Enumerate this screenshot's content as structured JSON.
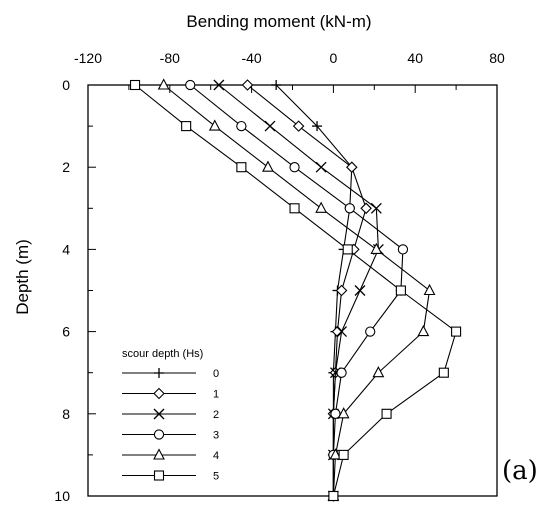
{
  "chart_data": {
    "type": "line",
    "xlabel": "Bending moment (kN-m)",
    "ylabel": "Depth (m)",
    "xlim": [
      -120,
      80
    ],
    "ylim": [
      10,
      0
    ],
    "x_axis_position": "top",
    "x_ticks": [
      -120,
      -80,
      -40,
      0,
      40,
      80
    ],
    "x_tick_labels": [
      "-120",
      "-80",
      "-40",
      "0",
      "40",
      "80"
    ],
    "y_ticks": [
      0,
      2,
      4,
      6,
      8,
      10
    ],
    "y_tick_labels": [
      "0",
      "2",
      "4",
      "6",
      "8",
      "10"
    ],
    "grid": false,
    "legend": {
      "title": "scour depth (Hs)",
      "placement": "bottom-left"
    },
    "panel_label": "(a)",
    "series": [
      {
        "name": "0",
        "marker": "plus",
        "points": [
          [
            -28,
            0
          ],
          [
            -8,
            1
          ],
          [
            9,
            2
          ],
          [
            8,
            3
          ],
          [
            5,
            4
          ],
          [
            2,
            5
          ],
          [
            1,
            6
          ],
          [
            0,
            7
          ],
          [
            0,
            8
          ],
          [
            0,
            9
          ],
          [
            0,
            10
          ]
        ]
      },
      {
        "name": "1",
        "marker": "diamond",
        "points": [
          [
            -42,
            0
          ],
          [
            -17,
            1
          ],
          [
            9,
            2
          ],
          [
            16,
            3
          ],
          [
            10,
            4
          ],
          [
            4,
            5
          ],
          [
            2,
            6
          ],
          [
            1,
            7
          ],
          [
            0,
            8
          ],
          [
            0,
            9
          ],
          [
            0,
            10
          ]
        ]
      },
      {
        "name": "2",
        "marker": "cross",
        "points": [
          [
            -56,
            0
          ],
          [
            -31,
            1
          ],
          [
            -6,
            2
          ],
          [
            21,
            3
          ],
          [
            22,
            4
          ],
          [
            13,
            5
          ],
          [
            4,
            6
          ],
          [
            1,
            7
          ],
          [
            0,
            8
          ],
          [
            0,
            9
          ],
          [
            0,
            10
          ]
        ]
      },
      {
        "name": "3",
        "marker": "circle",
        "points": [
          [
            -70,
            0
          ],
          [
            -45,
            1
          ],
          [
            -19,
            2
          ],
          [
            8,
            3
          ],
          [
            34,
            4
          ],
          [
            33,
            5
          ],
          [
            18,
            6
          ],
          [
            4,
            7
          ],
          [
            1,
            8
          ],
          [
            0,
            9
          ],
          [
            0,
            10
          ]
        ]
      },
      {
        "name": "4",
        "marker": "triangle",
        "points": [
          [
            -83,
            0
          ],
          [
            -58,
            1
          ],
          [
            -32,
            2
          ],
          [
            -6,
            3
          ],
          [
            21,
            4
          ],
          [
            47,
            5
          ],
          [
            44,
            6
          ],
          [
            22,
            7
          ],
          [
            5,
            8
          ],
          [
            1,
            9
          ],
          [
            0,
            10
          ]
        ]
      },
      {
        "name": "5",
        "marker": "square",
        "points": [
          [
            -97,
            0
          ],
          [
            -72,
            1
          ],
          [
            -45,
            2
          ],
          [
            -19,
            3
          ],
          [
            7,
            4
          ],
          [
            33,
            5
          ],
          [
            60,
            6
          ],
          [
            54,
            7
          ],
          [
            26,
            8
          ],
          [
            5,
            9
          ],
          [
            0,
            10
          ]
        ]
      }
    ]
  }
}
